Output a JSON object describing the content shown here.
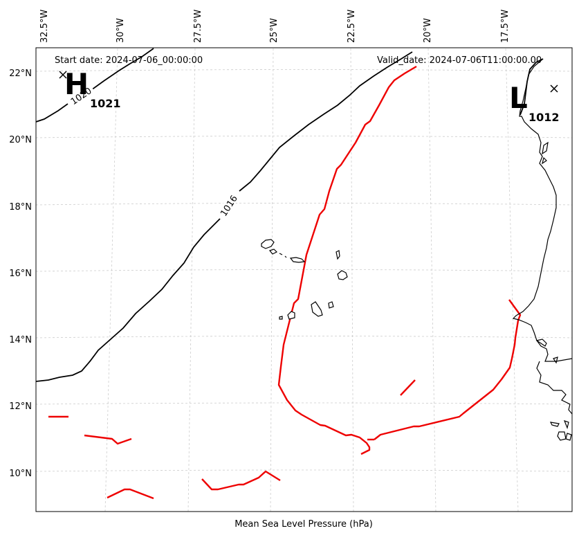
{
  "map": {
    "start_date": "Start date: 2024-07-06_00:00:00",
    "valid_date": "Valid_date: 2024-07-06T11:00:00.00",
    "footer_label": "Mean Sea Level Pressure (hPa)",
    "lon_labels": [
      "32.5°W",
      "30°W",
      "27.5°W",
      "25°W",
      "22.5°W",
      "20°W",
      "17.5°W"
    ],
    "lat_labels": [
      "22°N",
      "20°N",
      "18°N",
      "16°N",
      "14°N",
      "12°N",
      "10°N"
    ],
    "isobar_labels": [
      "1020",
      "1016"
    ],
    "high": {
      "letter": "H",
      "value": "1021"
    },
    "low": {
      "letter": "L",
      "value": "1012"
    },
    "colors": {
      "isobar": "#000000",
      "highlight_contour": "#ee0000",
      "coastline": "#000000",
      "grid": "#cccccc"
    }
  }
}
